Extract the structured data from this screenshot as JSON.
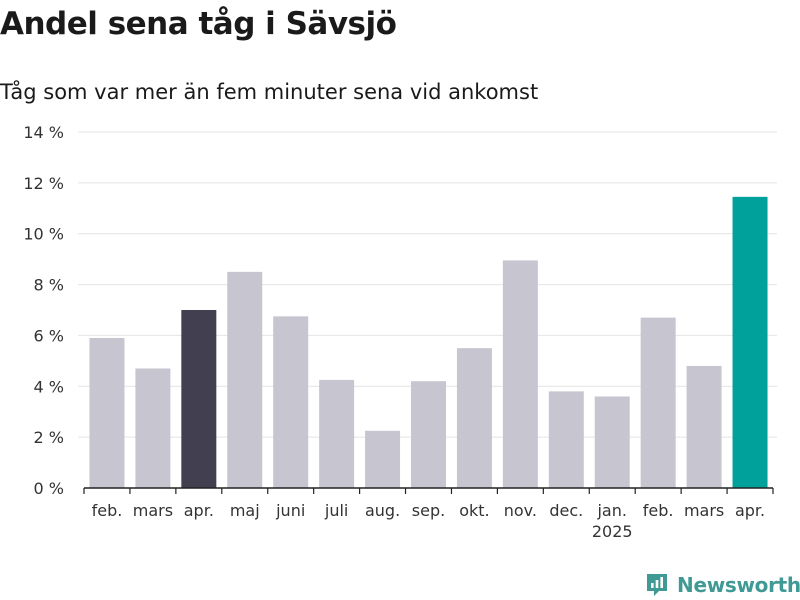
{
  "title": "Andel sena tåg i Sävsjö",
  "subtitle": "Tåg som var mer än fem minuter sena vid ankomst",
  "brand": {
    "name": "Newsworthy",
    "icon": "newsworthy-logo-icon"
  },
  "colors": {
    "default": "#c7c6d0",
    "highlight_dark": "#424050",
    "highlight_accent": "#00a19a",
    "grid": "#e4e4e4",
    "axis": "#222222"
  },
  "chart_data": {
    "type": "bar",
    "title": "Andel sena tåg i Sävsjö",
    "subtitle": "Tåg som var mer än fem minuter sena vid ankomst",
    "categories": [
      "feb.",
      "mars",
      "apr.",
      "maj",
      "juni",
      "juli",
      "aug.",
      "sep.",
      "okt.",
      "nov.",
      "dec.",
      "jan.",
      "feb.",
      "mars",
      "apr."
    ],
    "year_labels": [
      {
        "index": 11,
        "label": "2025"
      }
    ],
    "values": [
      5.9,
      4.7,
      7.0,
      8.5,
      6.75,
      4.25,
      2.25,
      4.2,
      5.5,
      8.95,
      3.8,
      3.6,
      6.7,
      4.8,
      11.45
    ],
    "highlight": {
      "2": "dark",
      "14": "accent"
    },
    "ylim": [
      0,
      14
    ],
    "yticks": [
      0,
      2,
      4,
      6,
      8,
      10,
      12,
      14
    ],
    "ytick_labels": [
      "0 %",
      "2 %",
      "4 %",
      "6 %",
      "8 %",
      "10 %",
      "12 %",
      "14 %"
    ],
    "grid": true,
    "legend": "none"
  }
}
